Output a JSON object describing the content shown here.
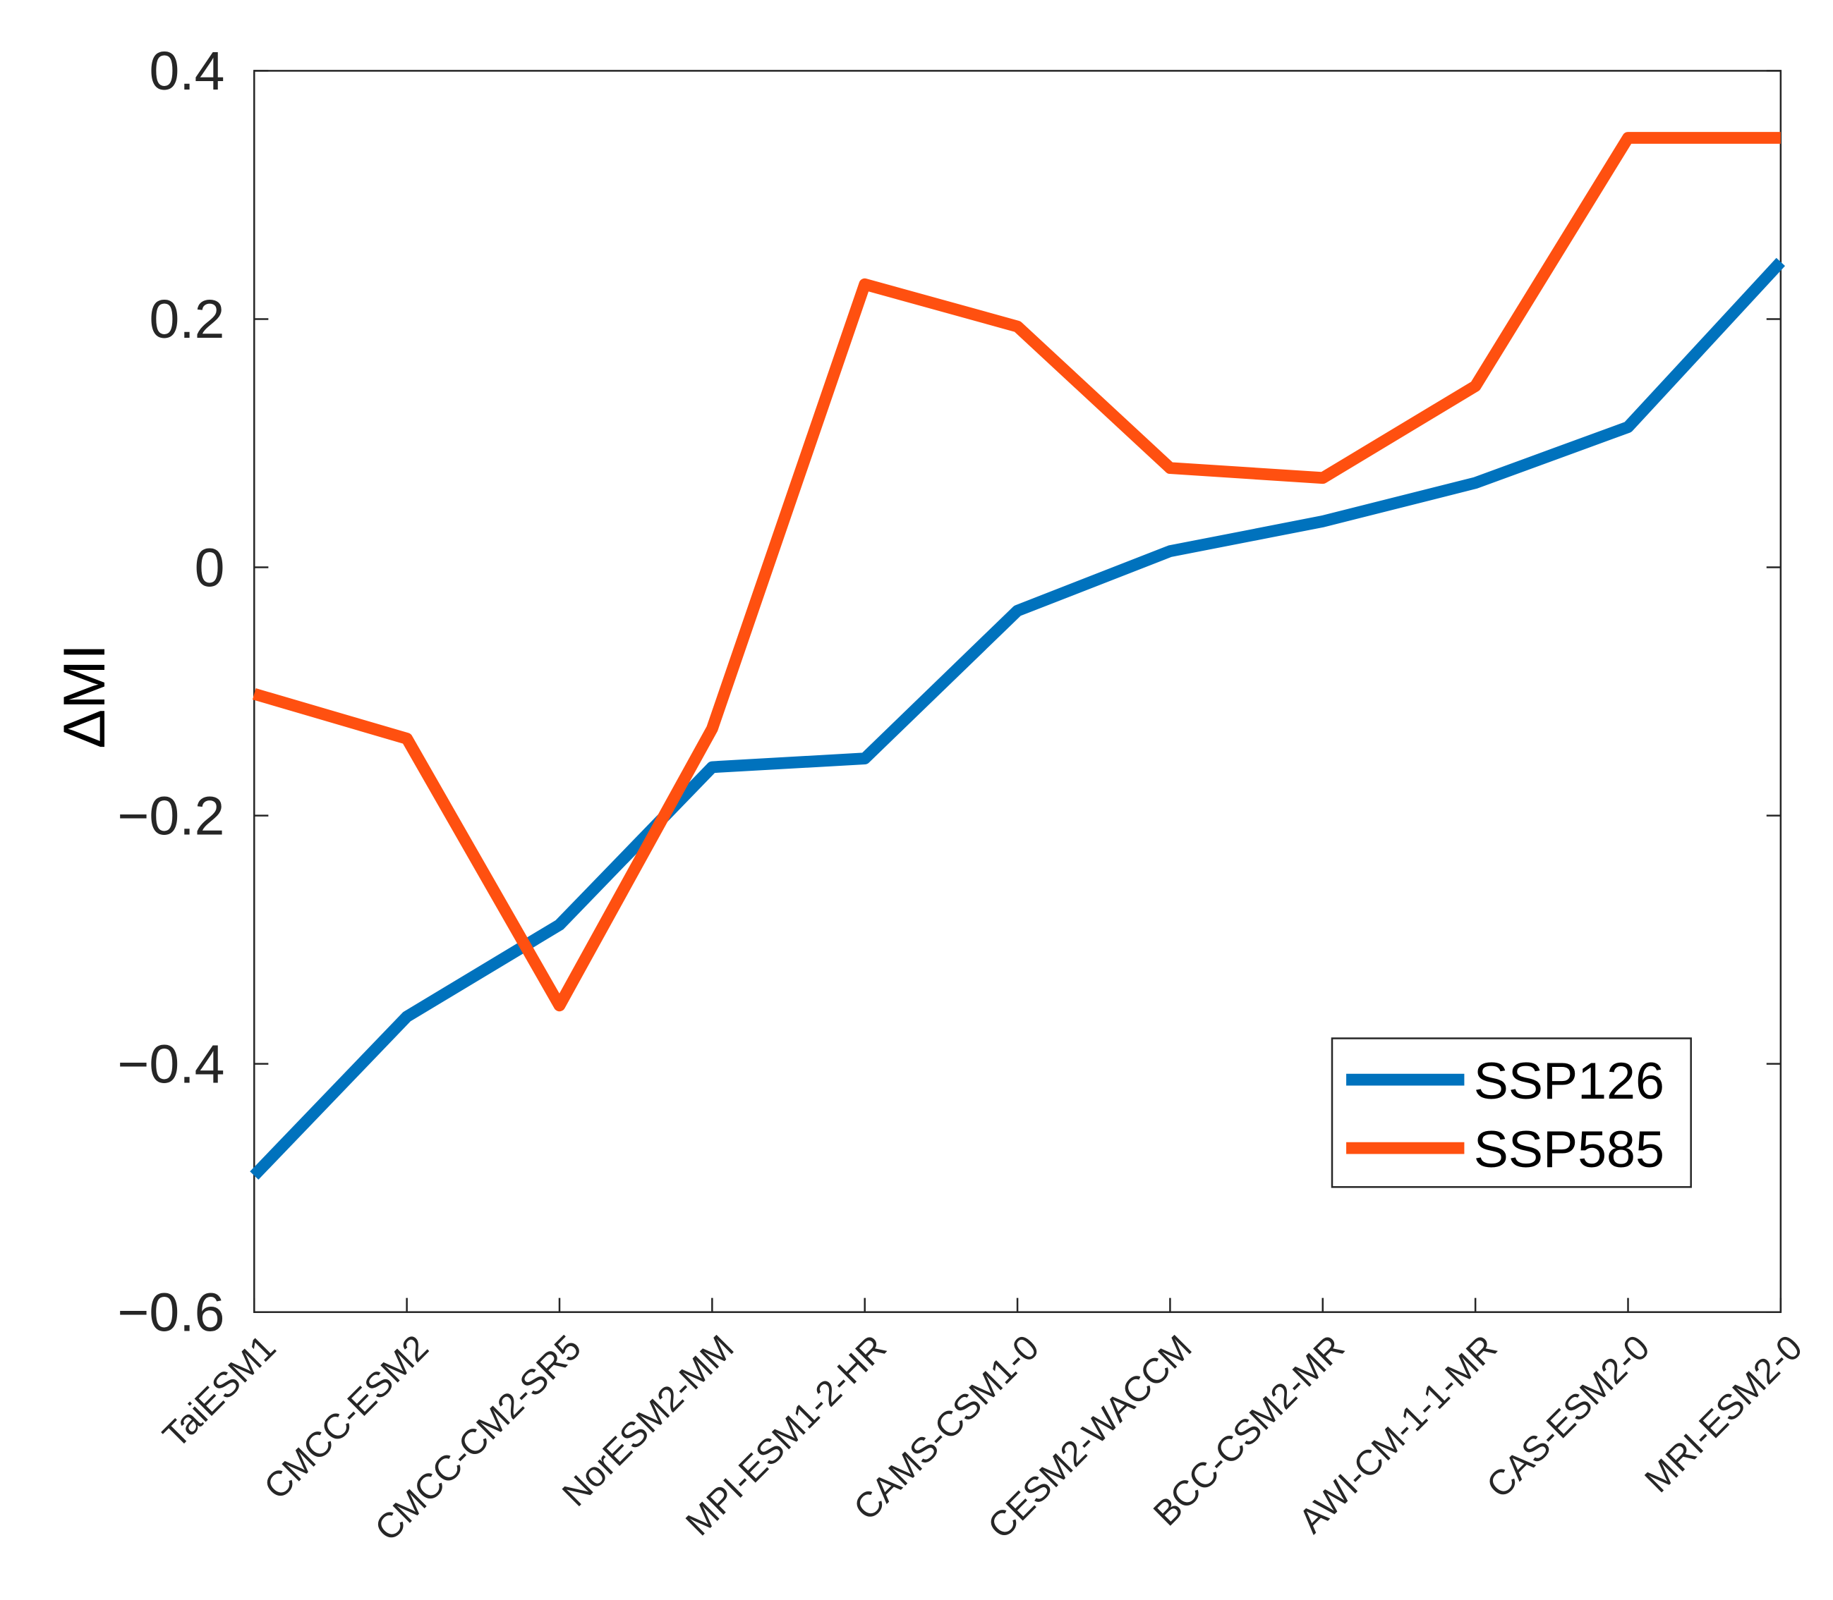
{
  "chart_data": {
    "type": "line",
    "y_label": "ΔMI",
    "categories": [
      "TaiESM1",
      "CMCC-ESM2",
      "CMCC-CM2-SR5",
      "NorESM2-MM",
      "MPI-ESM1-2-HR",
      "CAMS-CSM1-0",
      "CESM2-WACCM",
      "BCC-CSM2-MR",
      "AWI-CM-1-1-MR",
      "CAS-ESM2-0",
      "MRI-ESM2-0"
    ],
    "series": [
      {
        "name": "SSP126",
        "color": "#0072bd",
        "values": [
          -0.49,
          -0.362,
          -0.288,
          -0.161,
          -0.154,
          -0.035,
          0.013,
          0.037,
          0.068,
          0.113,
          0.246
        ]
      },
      {
        "name": "SSP585",
        "color": "#ff5010",
        "values": [
          -0.102,
          -0.138,
          -0.353,
          -0.13,
          0.228,
          0.194,
          0.08,
          0.072,
          0.146,
          0.346,
          0.346
        ]
      }
    ],
    "ylim": [
      -0.6,
      0.4
    ],
    "yticks": [
      {
        "value": -0.6,
        "label": "−0.6"
      },
      {
        "value": -0.4,
        "label": "−0.4"
      },
      {
        "value": -0.2,
        "label": "−0.2"
      },
      0,
      0.2,
      0.4
    ],
    "legend": "southeast",
    "grid": false
  }
}
